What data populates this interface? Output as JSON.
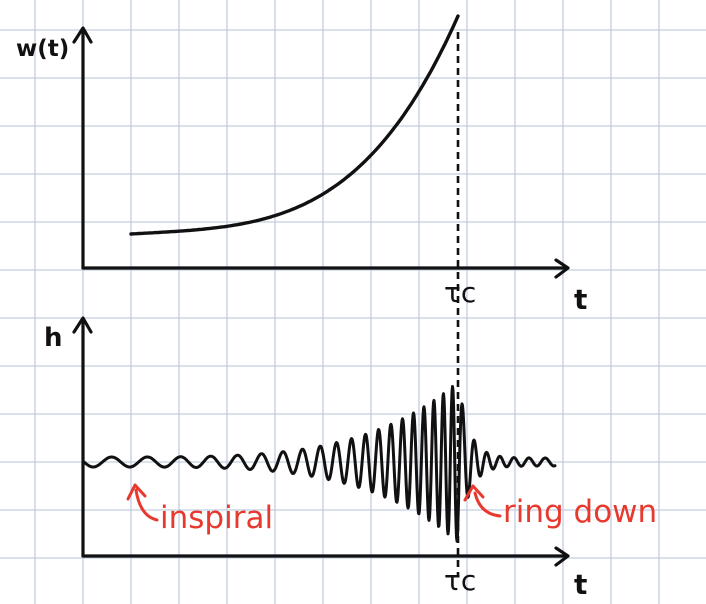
{
  "grid": {
    "line_color": "#c3cde0",
    "background": "#ffffff"
  },
  "ink_color": "#111111",
  "annotation_color": "#e8392f",
  "top_plot": {
    "y_label": "w(t)",
    "x_label": "t",
    "marker_label": "τc"
  },
  "bottom_plot": {
    "y_label": "h",
    "x_label": "t",
    "marker_label": "τc",
    "annotations": {
      "inspiral": "inspiral",
      "ring_down": "ring down"
    }
  }
}
